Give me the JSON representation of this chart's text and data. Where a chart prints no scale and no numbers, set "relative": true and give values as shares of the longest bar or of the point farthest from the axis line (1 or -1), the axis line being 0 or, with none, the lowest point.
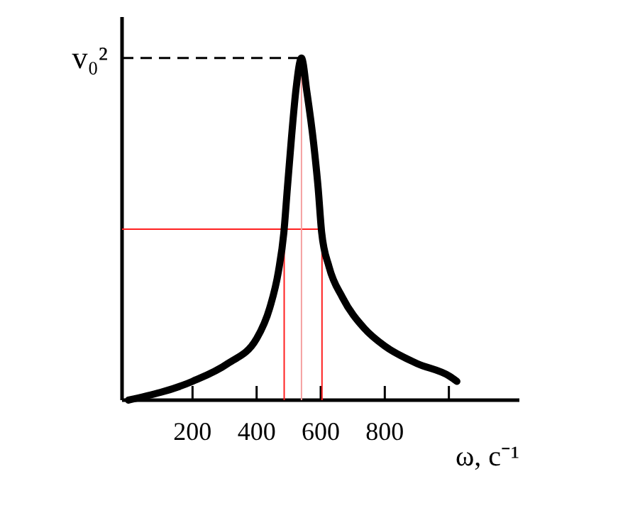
{
  "chart_data": {
    "type": "line",
    "relative": true,
    "ylabel": "v₀²",
    "xlabel": "ω, с⁻¹",
    "x": [
      0,
      200,
      310,
      400,
      441,
      468,
      485,
      496,
      509,
      523,
      540,
      557,
      578,
      592,
      603,
      626,
      668,
      736,
      800,
      901,
      1002,
      1025
    ],
    "series": [
      {
        "color": "#000000",
        "values": [
          0,
          0.055,
          0.107,
          0.18,
          0.27,
          0.376,
          0.49,
          0.62,
          0.77,
          0.91,
          1.0,
          0.9,
          0.75,
          0.62,
          0.49,
          0.39,
          0.3,
          0.21,
          0.158,
          0.107,
          0.07,
          0.055
        ]
      }
    ],
    "xlim": [
      -20,
      1220
    ],
    "xticks": [
      200,
      400,
      600,
      800,
      {
        "value": 1000,
        "label": null
      }
    ],
    "ref_lines": [
      {
        "axis": "y",
        "value": 1,
        "color": "#000000",
        "line_style": "dashed"
      },
      {
        "axis": "y",
        "value": 0.5,
        "color": "#ff2020"
      },
      {
        "axis": "x",
        "value": 486,
        "color": "#ff2020"
      },
      {
        "axis": "x",
        "value": 540,
        "color": "#f4a0a0"
      },
      {
        "axis": "x",
        "value": 604,
        "color": "#ff2020"
      }
    ],
    "grid": false
  }
}
